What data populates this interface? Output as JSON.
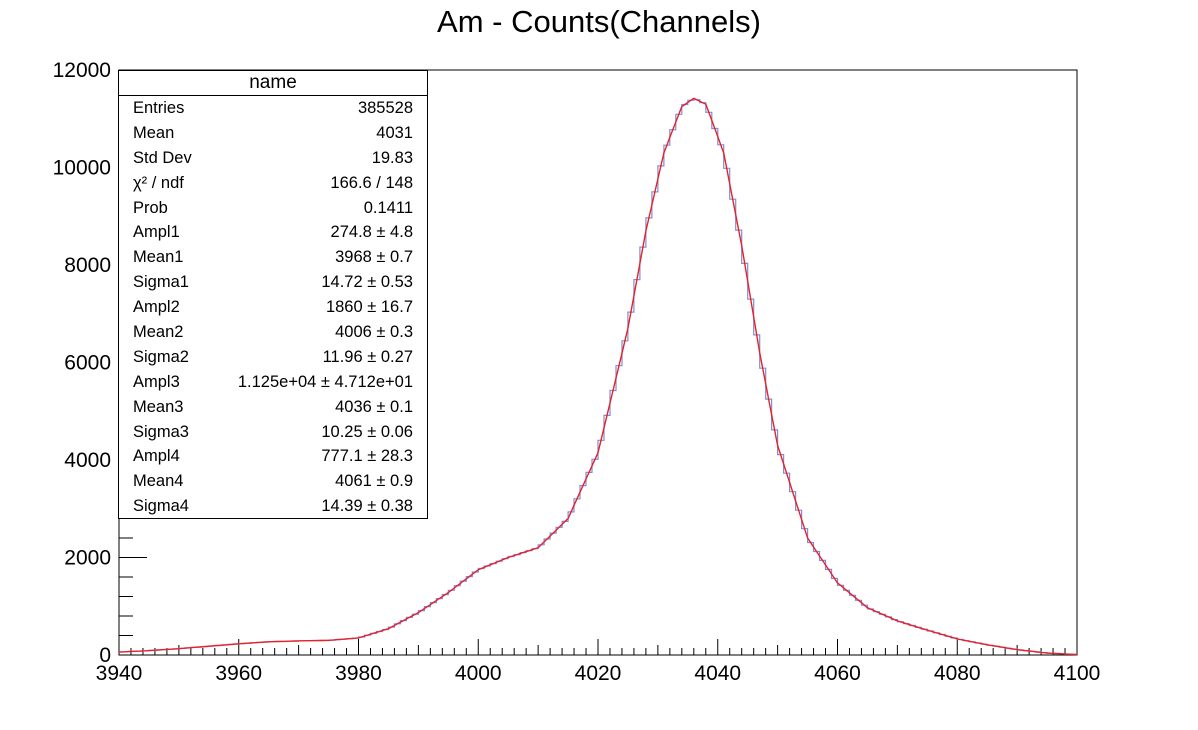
{
  "chart_data": {
    "type": "histogram",
    "title": "Am - Counts(Channels)",
    "xlabel": "",
    "ylabel": "",
    "xlim": [
      3940,
      4100
    ],
    "ylim": [
      0,
      12000
    ],
    "x_ticks": [
      "3940",
      "3960",
      "3980",
      "4000",
      "4020",
      "4040",
      "4060",
      "4080",
      "4100"
    ],
    "y_ticks": [
      "0",
      "2000",
      "4000",
      "6000",
      "8000",
      "10000",
      "12000"
    ],
    "grid": false,
    "series": [
      {
        "kind": "histogram",
        "color": "#7b8fd6",
        "x": [
          3940,
          3945,
          3950,
          3955,
          3960,
          3965,
          3970,
          3975,
          3980,
          3985,
          3990,
          3995,
          4000,
          4005,
          4010,
          4015,
          4020,
          4025,
          4028,
          4031,
          4034,
          4036,
          4038,
          4041,
          4044,
          4047,
          4050,
          4055,
          4060,
          4065,
          4070,
          4075,
          4080,
          4085,
          4090,
          4095,
          4100
        ],
        "y": [
          60,
          90,
          130,
          180,
          230,
          270,
          290,
          300,
          350,
          540,
          870,
          1280,
          1750,
          2000,
          2200,
          2800,
          4150,
          6700,
          8700,
          10300,
          11250,
          11420,
          11300,
          10300,
          8400,
          6200,
          4300,
          2400,
          1480,
          970,
          700,
          510,
          330,
          210,
          110,
          40,
          10
        ]
      },
      {
        "kind": "fit",
        "color": "#e8202a",
        "x": [
          3940,
          3945,
          3950,
          3955,
          3960,
          3965,
          3970,
          3975,
          3980,
          3985,
          3990,
          3995,
          4000,
          4005,
          4010,
          4015,
          4020,
          4025,
          4028,
          4031,
          4034,
          4036,
          4038,
          4041,
          4044,
          4047,
          4050,
          4055,
          4060,
          4065,
          4070,
          4075,
          4080,
          4085,
          4090,
          4095,
          4100
        ],
        "y": [
          60,
          90,
          130,
          180,
          230,
          270,
          290,
          300,
          350,
          540,
          870,
          1280,
          1750,
          2000,
          2200,
          2800,
          4150,
          6700,
          8700,
          10300,
          11250,
          11420,
          11300,
          10300,
          8400,
          6200,
          4300,
          2400,
          1480,
          970,
          700,
          510,
          330,
          210,
          110,
          40,
          10
        ]
      }
    ],
    "stats_box": {
      "title": "name",
      "rows": [
        {
          "label": "Entries",
          "value": "385528"
        },
        {
          "label": "Mean",
          "value": "4031"
        },
        {
          "label": "Std Dev",
          "value": "19.83"
        },
        {
          "label": "χ² / ndf",
          "value": "166.6 / 148"
        },
        {
          "label": "Prob",
          "value": "0.1411"
        },
        {
          "label": "Ampl1",
          "value": "274.8 ± 4.8"
        },
        {
          "label": "Mean1",
          "value": "3968 ± 0.7"
        },
        {
          "label": "Sigma1",
          "value": "14.72 ± 0.53"
        },
        {
          "label": "Ampl2",
          "value": "1860 ± 16.7"
        },
        {
          "label": "Mean2",
          "value": "4006 ± 0.3"
        },
        {
          "label": "Sigma2",
          "value": "11.96 ± 0.27"
        },
        {
          "label": "Ampl3",
          "value": "1.125e+04 ± 4.712e+01"
        },
        {
          "label": "Mean3",
          "value": "4036 ± 0.1"
        },
        {
          "label": "Sigma3",
          "value": "10.25 ± 0.06"
        },
        {
          "label": "Ampl4",
          "value": "777.1 ± 28.3"
        },
        {
          "label": "Mean4",
          "value": "4061 ± 0.9"
        },
        {
          "label": "Sigma4",
          "value": "14.39 ± 0.38"
        }
      ]
    }
  }
}
